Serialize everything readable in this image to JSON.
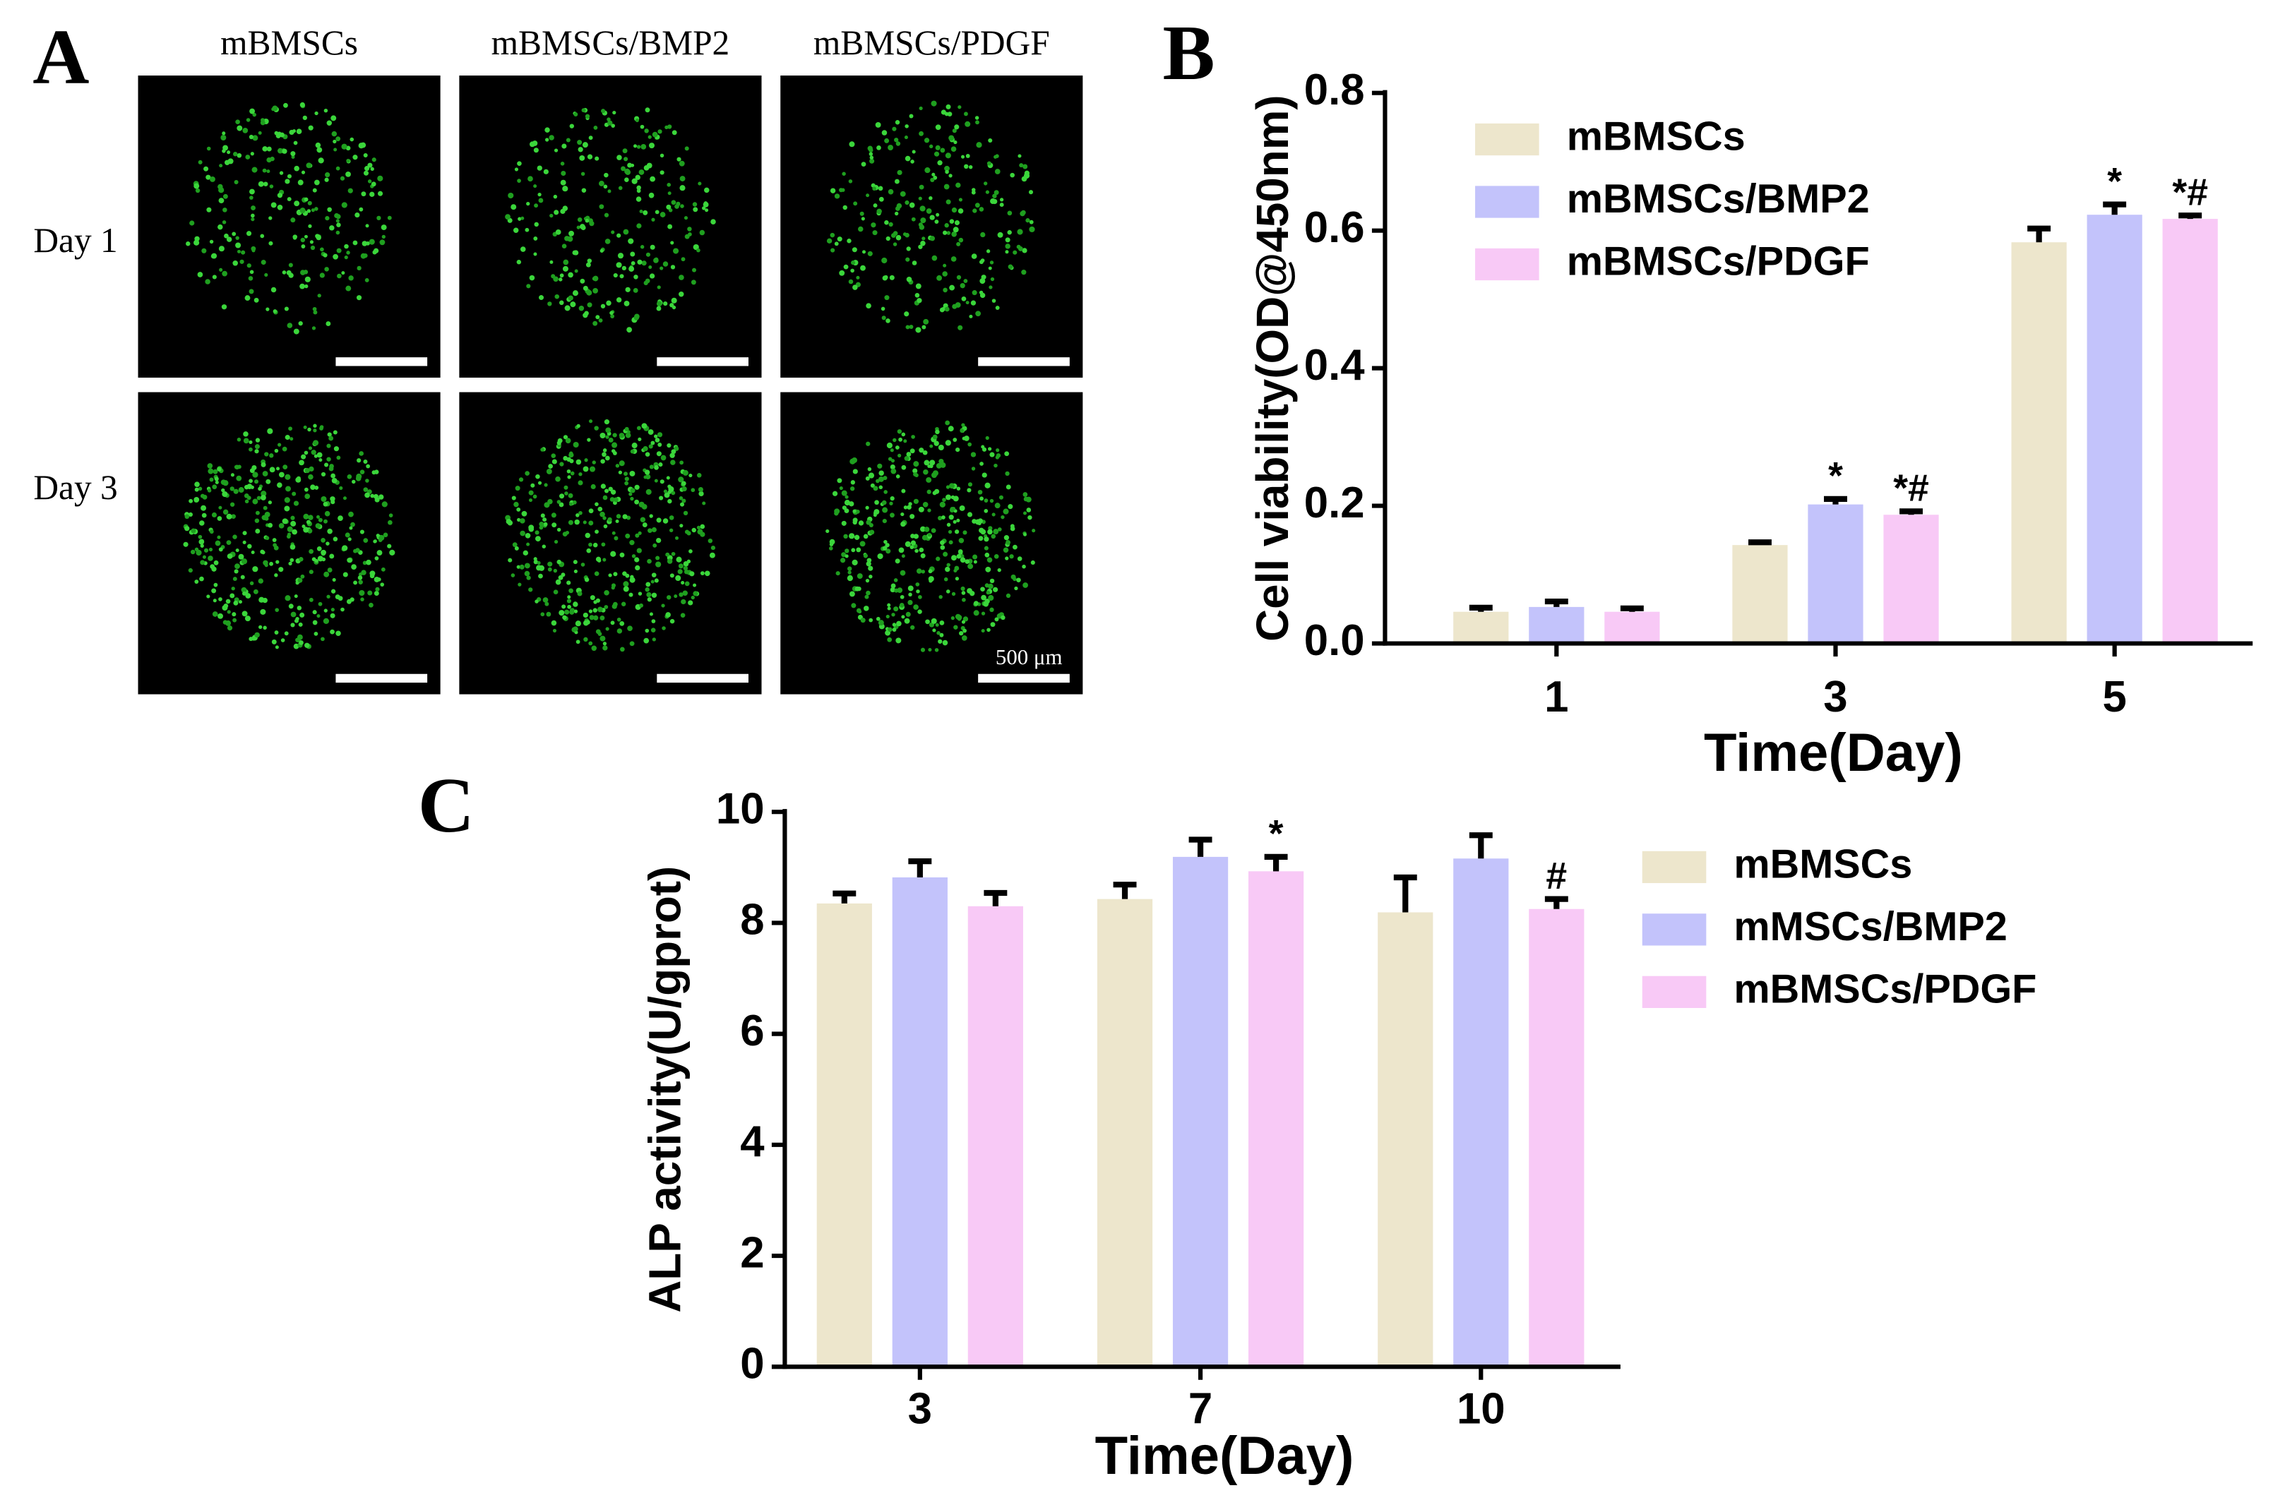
{
  "panel_a": {
    "label": "A",
    "columns": [
      "mBMSCs",
      "mBMSCs/BMP2",
      "mBMSCs/PDGF"
    ],
    "rows": [
      "Day 1",
      "Day 3"
    ],
    "scale_bar": "500 μm"
  },
  "chart_data": [
    {
      "type": "bar",
      "panel": "B",
      "ylabel": "Cell viability(OD@450nm)",
      "xlabel": "Time(Day)",
      "categories": [
        "1",
        "3",
        "5"
      ],
      "series": [
        {
          "name": "mBMSCs",
          "color": "#ede6cc",
          "values": [
            0.046,
            0.143,
            0.583
          ],
          "errors": [
            0.006,
            0.004,
            0.02
          ],
          "labels": [
            null,
            null,
            null
          ]
        },
        {
          "name": "mBMSCs/BMP2",
          "color": "#c3c3fb",
          "values": [
            0.053,
            0.202,
            0.623
          ],
          "errors": [
            0.008,
            0.008,
            0.015
          ],
          "labels": [
            null,
            "*",
            "*"
          ]
        },
        {
          "name": "mBMSCs/PDGF",
          "color": "#f8c9f6",
          "values": [
            0.046,
            0.187,
            0.617
          ],
          "errors": [
            0.005,
            0.005,
            0.005
          ],
          "labels": [
            null,
            "*#",
            "*#"
          ]
        }
      ],
      "ylim": [
        0,
        0.8
      ],
      "yticks": [
        {
          "value": 0,
          "label": "0.0"
        },
        0.2,
        0.4,
        0.6,
        0.8
      ]
    },
    {
      "type": "bar",
      "panel": "C",
      "ylabel": "ALP activity(U/gprot)",
      "xlabel": "Time(Day)",
      "categories": [
        "3",
        "7",
        "10"
      ],
      "series": [
        {
          "name": "mBMSCs",
          "color": "#ede6cc",
          "values": [
            8.35,
            8.43,
            8.19
          ],
          "errors": [
            0.18,
            0.26,
            0.63
          ],
          "labels": [
            null,
            null,
            null
          ]
        },
        {
          "name": "mMSCs/BMP2",
          "color": "#c3c3fb",
          "values": [
            8.82,
            9.19,
            9.16
          ],
          "errors": [
            0.29,
            0.31,
            0.42
          ],
          "labels": [
            null,
            null,
            null
          ]
        },
        {
          "name": "mBMSCs/PDGF",
          "color": "#f8c9f6",
          "values": [
            8.3,
            8.93,
            8.25
          ],
          "errors": [
            0.24,
            0.26,
            0.18
          ],
          "labels": [
            null,
            "*",
            "#"
          ]
        }
      ],
      "ylim": [
        0,
        10
      ],
      "yticks": [
        0,
        2,
        4,
        6,
        8,
        10
      ]
    }
  ]
}
